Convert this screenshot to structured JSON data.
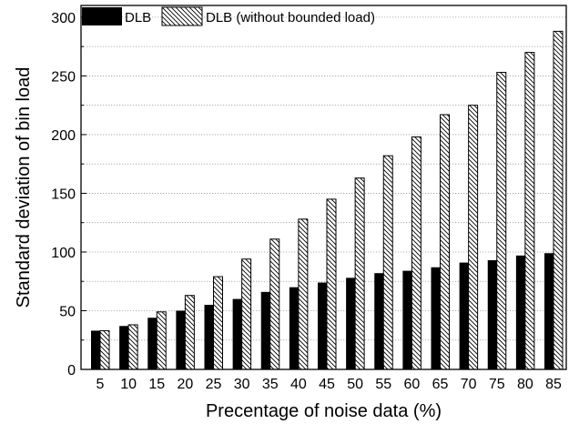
{
  "chart_data": {
    "type": "bar",
    "title": "",
    "xlabel": "Precentage of noise data (%)",
    "ylabel": "Standard deviation of bin load",
    "categories": [
      "5",
      "10",
      "15",
      "20",
      "25",
      "30",
      "35",
      "40",
      "45",
      "50",
      "55",
      "60",
      "65",
      "70",
      "75",
      "80",
      "85"
    ],
    "series": [
      {
        "name": "DLB",
        "fill": "solid",
        "color": "#000000",
        "values": [
          33,
          37,
          44,
          50,
          55,
          60,
          66,
          70,
          74,
          78,
          82,
          84,
          87,
          91,
          93,
          97,
          99
        ]
      },
      {
        "name": "DLB (without bounded load)",
        "fill": "hatched",
        "color": "#000000",
        "values": [
          33,
          38,
          49,
          63,
          79,
          94,
          111,
          128,
          145,
          163,
          182,
          198,
          217,
          225,
          253,
          270,
          288
        ]
      }
    ],
    "ylim": [
      0,
      310
    ],
    "yticks": [
      "0",
      "50",
      "100",
      "150",
      "200",
      "250",
      "300"
    ],
    "ytick_values": [
      0,
      50,
      100,
      150,
      200,
      250,
      300
    ],
    "grid": "horizontal dotted",
    "legend_position": "top-left"
  }
}
